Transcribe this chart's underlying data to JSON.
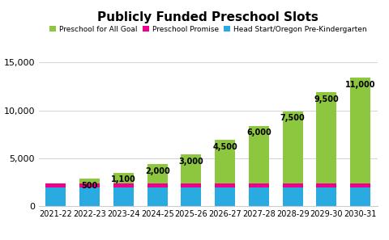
{
  "title": "Publicly Funded Preschool Slots",
  "categories": [
    "2021-22",
    "2022-23",
    "2023-24",
    "2024-25",
    "2025-26",
    "2026-27",
    "2027-28",
    "2028-29",
    "2029-30",
    "2030-31"
  ],
  "head_start": [
    2000,
    2000,
    2000,
    2000,
    2000,
    2000,
    2000,
    2000,
    2000,
    2000
  ],
  "preschool_promise": [
    400,
    400,
    400,
    400,
    400,
    400,
    400,
    400,
    400,
    400
  ],
  "pfa_goal": [
    0,
    500,
    1100,
    2000,
    3000,
    4500,
    6000,
    7500,
    9500,
    11000
  ],
  "pfa_labels": [
    null,
    "500",
    "1,100",
    "2,000",
    "3,000",
    "4,500",
    "6,000",
    "7,500",
    "9,500",
    "11,000"
  ],
  "colors": {
    "head_start": "#29ABE2",
    "preschool_promise": "#EC008C",
    "pfa_goal": "#8DC63F"
  },
  "legend": [
    "Preschool for All Goal",
    "Preschool Promise",
    "Head Start/Oregon Pre-Kindergarten"
  ],
  "ylim": [
    0,
    16000
  ],
  "yticks": [
    0,
    5000,
    10000,
    15000
  ],
  "bg_color": "#FFFFFF",
  "grid_color": "#CCCCCC",
  "label_fontsize": 7.0,
  "title_fontsize": 11
}
